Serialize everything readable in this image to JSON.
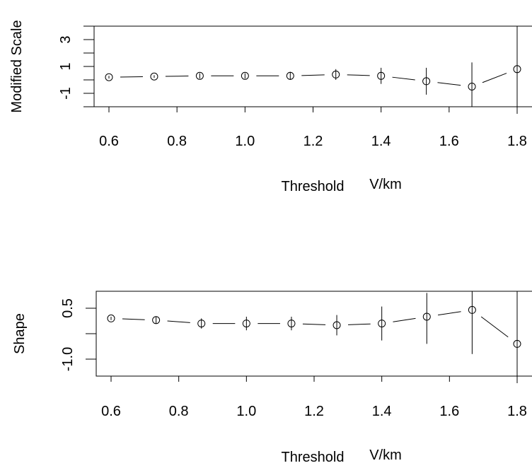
{
  "chart_data": [
    {
      "type": "scatter",
      "ylabel": "Modified Scale",
      "xlabel": "Threshold",
      "xunit": "V/km",
      "xticks": [
        "0.6",
        "0.8",
        "1.0",
        "1.2",
        "1.4",
        "1.6",
        "1.8"
      ],
      "yticks": [
        "-1",
        "1",
        "3"
      ],
      "xlim": [
        0.6,
        1.8
      ],
      "ylim": [
        -2,
        4
      ],
      "x": [
        0.6,
        0.733,
        0.867,
        1.0,
        1.133,
        1.267,
        1.4,
        1.533,
        1.667,
        1.8
      ],
      "y": [
        0.2,
        0.25,
        0.3,
        0.3,
        0.3,
        0.4,
        0.3,
        -0.1,
        -0.5,
        0.8
      ],
      "err_low": [
        0.1,
        0.1,
        0.2,
        0.2,
        0.3,
        0.4,
        0.6,
        1.0,
        1.5,
        4.3
      ],
      "err_high": [
        0.1,
        0.1,
        0.2,
        0.2,
        0.3,
        0.4,
        0.6,
        1.0,
        1.8,
        4.3
      ],
      "connected": true
    },
    {
      "type": "scatter",
      "ylabel": "Shape",
      "xlabel": "Threshold",
      "xunit": "V/km",
      "xticks": [
        "0.6",
        "0.8",
        "1.0",
        "1.2",
        "1.4",
        "1.6",
        "1.8"
      ],
      "yticks": [
        "-1.0",
        "0.5"
      ],
      "xlim": [
        0.6,
        1.8
      ],
      "ylim": [
        -1.5,
        1.0
      ],
      "x": [
        0.6,
        0.733,
        0.867,
        1.0,
        1.133,
        1.267,
        1.4,
        1.533,
        1.667,
        1.8
      ],
      "y": [
        0.2,
        0.15,
        0.05,
        0.05,
        0.05,
        0.0,
        0.05,
        0.25,
        0.45,
        -0.55
      ],
      "err_low": [
        0.05,
        0.1,
        0.15,
        0.2,
        0.2,
        0.3,
        0.5,
        0.8,
        1.3,
        2.2
      ],
      "err_high": [
        0.05,
        0.1,
        0.15,
        0.2,
        0.2,
        0.3,
        0.5,
        0.7,
        1.3,
        2.2
      ],
      "connected": true
    }
  ]
}
